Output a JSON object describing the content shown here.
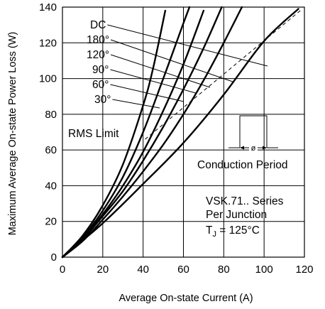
{
  "chart_data": {
    "type": "line",
    "title": "",
    "xlabel": "Average  On-state  Current  (A)",
    "ylabel": "Maximum  Average  On-state  Power  Loss  (W)",
    "xlim": [
      0,
      120
    ],
    "ylim": [
      0,
      140
    ],
    "x_ticks": [
      0,
      20,
      40,
      60,
      80,
      100,
      120
    ],
    "y_ticks": [
      0,
      20,
      40,
      60,
      80,
      100,
      120,
      140
    ],
    "grid": true,
    "series": [
      {
        "name": "30°",
        "points": [
          [
            0,
            0
          ],
          [
            10,
            12
          ],
          [
            20,
            29
          ],
          [
            30,
            52
          ],
          [
            40,
            85
          ],
          [
            45,
            106
          ],
          [
            51,
            138
          ]
        ]
      },
      {
        "name": "60°",
        "points": [
          [
            0,
            0
          ],
          [
            10,
            11
          ],
          [
            20,
            26
          ],
          [
            30,
            45
          ],
          [
            40,
            70
          ],
          [
            50,
            100
          ],
          [
            60,
            131
          ],
          [
            63,
            140
          ]
        ]
      },
      {
        "name": "90°",
        "points": [
          [
            0,
            0
          ],
          [
            10,
            10
          ],
          [
            20,
            24
          ],
          [
            30,
            40
          ],
          [
            40,
            59
          ],
          [
            50,
            82
          ],
          [
            60,
            108
          ],
          [
            70,
            138
          ]
        ]
      },
      {
        "name": "120°",
        "points": [
          [
            0,
            0
          ],
          [
            10,
            10
          ],
          [
            20,
            23
          ],
          [
            30,
            37
          ],
          [
            40,
            54
          ],
          [
            50,
            73
          ],
          [
            60,
            94
          ],
          [
            70,
            117
          ],
          [
            79,
            140
          ]
        ]
      },
      {
        "name": "180°",
        "points": [
          [
            0,
            0
          ],
          [
            10,
            9
          ],
          [
            20,
            21
          ],
          [
            30,
            34
          ],
          [
            40,
            48
          ],
          [
            50,
            63
          ],
          [
            60,
            80
          ],
          [
            70,
            99
          ],
          [
            80,
            120
          ],
          [
            89,
            140
          ]
        ]
      },
      {
        "name": "DC",
        "points": [
          [
            0,
            0
          ],
          [
            20,
            19
          ],
          [
            40,
            41
          ],
          [
            60,
            64
          ],
          [
            80,
            91
          ],
          [
            100,
            121
          ],
          [
            117,
            139
          ]
        ]
      }
    ],
    "rms_limit": {
      "label": "RMS Limit",
      "points": [
        [
          41,
          66
        ],
        [
          119,
          139
        ]
      ]
    },
    "annotations": {
      "conduction_label": "Conduction Period",
      "phase_symbol": "ø",
      "device_lines": [
        "VSK.71.. Series",
        "Per Junction"
      ],
      "tj_prefix": "T",
      "tj_subscript": "J",
      "tj_value": " = 125°C"
    }
  }
}
